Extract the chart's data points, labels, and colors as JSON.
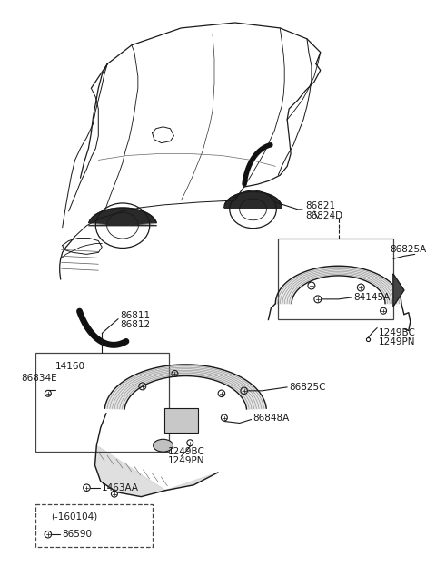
{
  "bg": "#ffffff",
  "lc": "#1a1a1a",
  "tc": "#1a1a1a",
  "fs": 7.5,
  "fig_w": 4.8,
  "fig_h": 6.34,
  "dpi": 100,
  "labels": {
    "86821_line1": "86821",
    "86821_line2": "86824D",
    "86825A": "86825A",
    "84145A": "84145A",
    "1249BC_r_1": "1249BC",
    "1249BC_r_2": "1249PN",
    "86811_1": "86811",
    "86811_2": "86812",
    "14160": "14160",
    "86834E": "86834E",
    "86825C": "86825C",
    "86848A": "86848A",
    "1249BC_l_1": "1249BC",
    "1249BC_l_2": "1249PN",
    "1463AA": "1463AA",
    "160104": "(-160104)",
    "86590": "86590"
  }
}
